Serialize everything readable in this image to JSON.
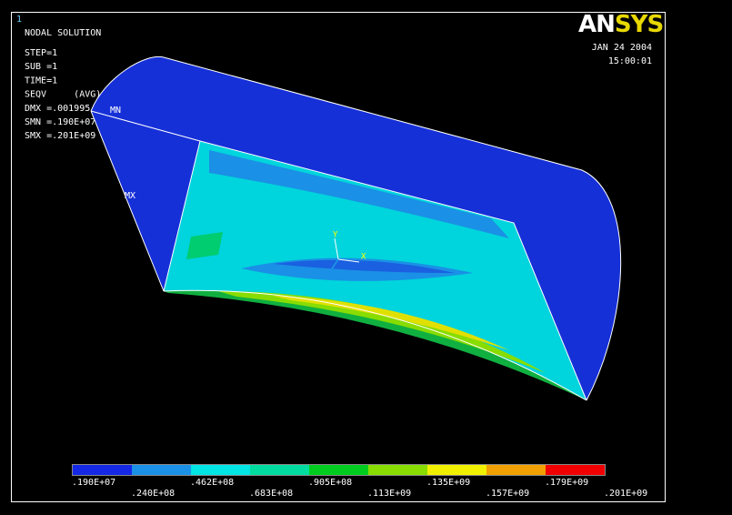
{
  "window_number": "1",
  "header": {
    "title": "NODAL SOLUTION",
    "info": [
      "STEP=1",
      "SUB =1",
      "TIME=1",
      "SEQV     (AVG)",
      "DMX =.001995",
      "SMN =.190E+07",
      "SMX =.201E+09"
    ]
  },
  "logo": {
    "an": "AN",
    "sys": "SYS"
  },
  "date": "JAN 24 2004",
  "time": "15:00:01",
  "markers": {
    "min": "MN",
    "max": "MX"
  },
  "axes": {
    "y": "Y",
    "x": "X"
  },
  "legend": {
    "colors": [
      "#1428e6",
      "#1a90e6",
      "#00e4e4",
      "#00dca0",
      "#00cc20",
      "#88dc00",
      "#f0f000",
      "#f0a000",
      "#f00000"
    ],
    "labels": [
      ".190E+07",
      ".240E+08",
      ".462E+08",
      ".683E+08",
      ".905E+08",
      ".113E+09",
      ".135E+09",
      ".157E+09",
      ".179E+09",
      ".201E+09"
    ]
  }
}
